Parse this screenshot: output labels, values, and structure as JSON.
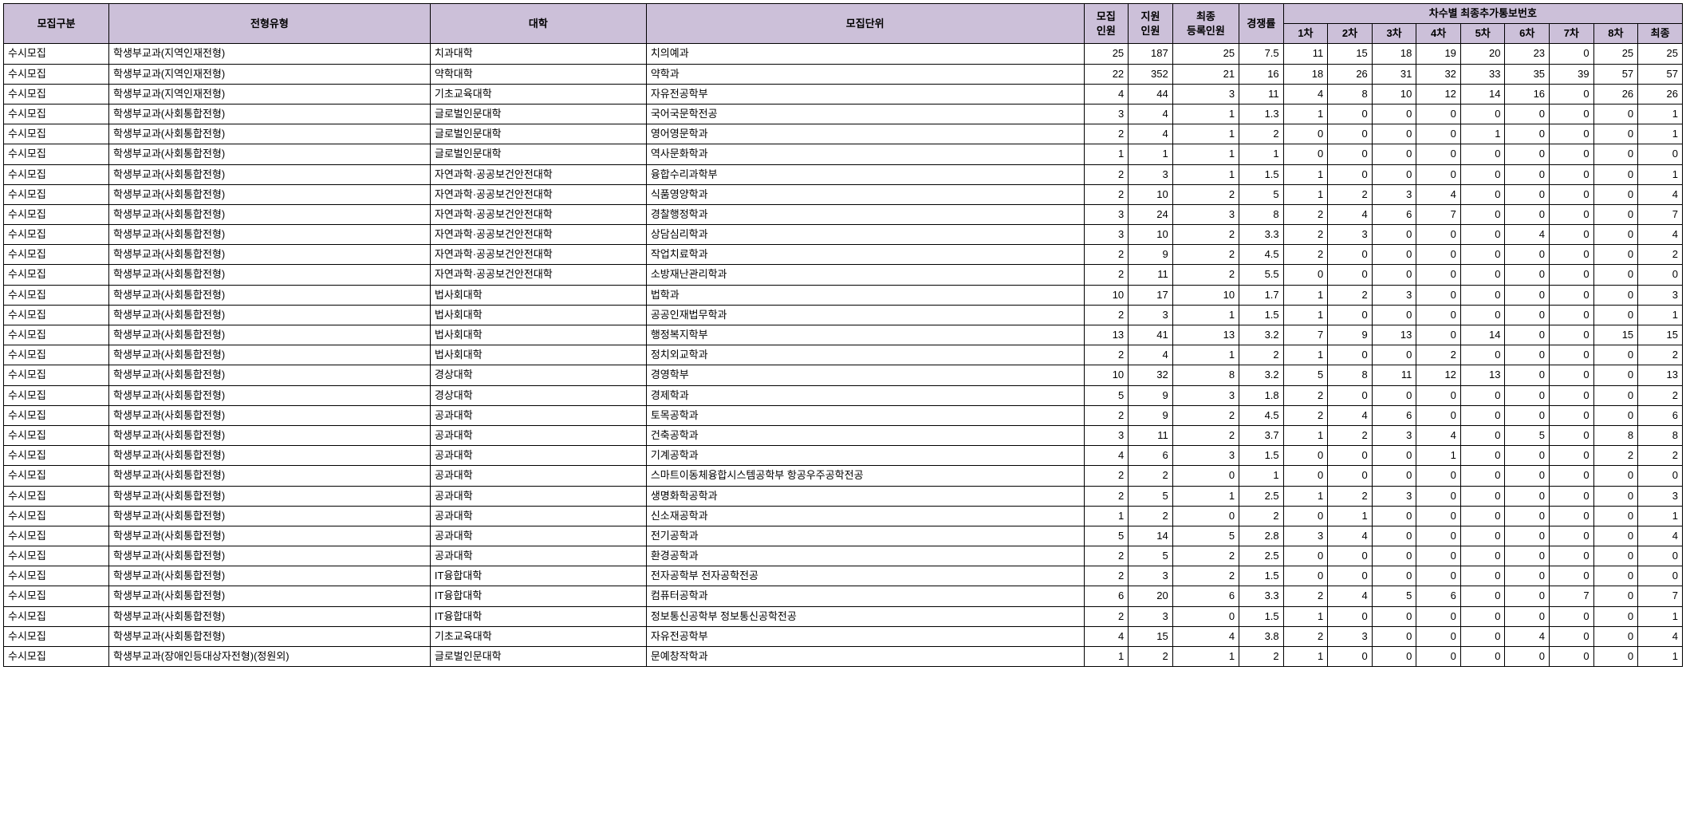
{
  "styling": {
    "header_bg": "#ccc0d9",
    "border_color": "#000000",
    "cell_bg": "#ffffff",
    "font_size": 13,
    "font_family": "Malgun Gothic"
  },
  "headers": {
    "category": "모집구분",
    "admission_type": "전형유형",
    "college": "대학",
    "department": "모집단위",
    "recruit_count": "모집\n인원",
    "apply_count": "지원\n인원",
    "final_enroll": "최종\n등록인원",
    "competition": "경쟁률",
    "round_notice_group": "차수별 최종추가통보번호",
    "r1": "1차",
    "r2": "2차",
    "r3": "3차",
    "r4": "4차",
    "r5": "5차",
    "r6": "6차",
    "r7": "7차",
    "r8": "8차",
    "final": "최종"
  },
  "rows": [
    {
      "category": "수시모집",
      "type": "학생부교과(지역인재전형)",
      "college": "치과대학",
      "dept": "치의예과",
      "recruit": 25,
      "apply": 187,
      "enroll": 25,
      "comp": "7.5",
      "r": [
        11,
        15,
        18,
        19,
        20,
        23,
        0,
        25,
        25
      ]
    },
    {
      "category": "수시모집",
      "type": "학생부교과(지역인재전형)",
      "college": "약학대학",
      "dept": "약학과",
      "recruit": 22,
      "apply": 352,
      "enroll": 21,
      "comp": "16",
      "r": [
        18,
        26,
        31,
        32,
        33,
        35,
        39,
        57,
        57
      ]
    },
    {
      "category": "수시모집",
      "type": "학생부교과(지역인재전형)",
      "college": "기초교육대학",
      "dept": "자유전공학부",
      "recruit": 4,
      "apply": 44,
      "enroll": 3,
      "comp": "11",
      "r": [
        4,
        8,
        10,
        12,
        14,
        16,
        0,
        26,
        26
      ]
    },
    {
      "category": "수시모집",
      "type": "학생부교과(사회통합전형)",
      "college": "글로벌인문대학",
      "dept": "국어국문학전공",
      "recruit": 3,
      "apply": 4,
      "enroll": 1,
      "comp": "1.3",
      "r": [
        1,
        0,
        0,
        0,
        0,
        0,
        0,
        0,
        1
      ]
    },
    {
      "category": "수시모집",
      "type": "학생부교과(사회통합전형)",
      "college": "글로벌인문대학",
      "dept": "영어영문학과",
      "recruit": 2,
      "apply": 4,
      "enroll": 1,
      "comp": "2",
      "r": [
        0,
        0,
        0,
        0,
        1,
        0,
        0,
        0,
        1
      ]
    },
    {
      "category": "수시모집",
      "type": "학생부교과(사회통합전형)",
      "college": "글로벌인문대학",
      "dept": "역사문화학과",
      "recruit": 1,
      "apply": 1,
      "enroll": 1,
      "comp": "1",
      "r": [
        0,
        0,
        0,
        0,
        0,
        0,
        0,
        0,
        0
      ]
    },
    {
      "category": "수시모집",
      "type": "학생부교과(사회통합전형)",
      "college": "자연과학·공공보건안전대학",
      "dept": "융합수리과학부",
      "recruit": 2,
      "apply": 3,
      "enroll": 1,
      "comp": "1.5",
      "r": [
        1,
        0,
        0,
        0,
        0,
        0,
        0,
        0,
        1
      ]
    },
    {
      "category": "수시모집",
      "type": "학생부교과(사회통합전형)",
      "college": "자연과학·공공보건안전대학",
      "dept": "식품영양학과",
      "recruit": 2,
      "apply": 10,
      "enroll": 2,
      "comp": "5",
      "r": [
        1,
        2,
        3,
        4,
        0,
        0,
        0,
        0,
        4
      ]
    },
    {
      "category": "수시모집",
      "type": "학생부교과(사회통합전형)",
      "college": "자연과학·공공보건안전대학",
      "dept": "경찰행정학과",
      "recruit": 3,
      "apply": 24,
      "enroll": 3,
      "comp": "8",
      "r": [
        2,
        4,
        6,
        7,
        0,
        0,
        0,
        0,
        7
      ]
    },
    {
      "category": "수시모집",
      "type": "학생부교과(사회통합전형)",
      "college": "자연과학·공공보건안전대학",
      "dept": "상담심리학과",
      "recruit": 3,
      "apply": 10,
      "enroll": 2,
      "comp": "3.3",
      "r": [
        2,
        3,
        0,
        0,
        0,
        4,
        0,
        0,
        4
      ]
    },
    {
      "category": "수시모집",
      "type": "학생부교과(사회통합전형)",
      "college": "자연과학·공공보건안전대학",
      "dept": "작업치료학과",
      "recruit": 2,
      "apply": 9,
      "enroll": 2,
      "comp": "4.5",
      "r": [
        2,
        0,
        0,
        0,
        0,
        0,
        0,
        0,
        2
      ]
    },
    {
      "category": "수시모집",
      "type": "학생부교과(사회통합전형)",
      "college": "자연과학·공공보건안전대학",
      "dept": "소방재난관리학과",
      "recruit": 2,
      "apply": 11,
      "enroll": 2,
      "comp": "5.5",
      "r": [
        0,
        0,
        0,
        0,
        0,
        0,
        0,
        0,
        0
      ]
    },
    {
      "category": "수시모집",
      "type": "학생부교과(사회통합전형)",
      "college": "법사회대학",
      "dept": "법학과",
      "recruit": 10,
      "apply": 17,
      "enroll": 10,
      "comp": "1.7",
      "r": [
        1,
        2,
        3,
        0,
        0,
        0,
        0,
        0,
        3
      ]
    },
    {
      "category": "수시모집",
      "type": "학생부교과(사회통합전형)",
      "college": "법사회대학",
      "dept": "공공인재법무학과",
      "recruit": 2,
      "apply": 3,
      "enroll": 1,
      "comp": "1.5",
      "r": [
        1,
        0,
        0,
        0,
        0,
        0,
        0,
        0,
        1
      ]
    },
    {
      "category": "수시모집",
      "type": "학생부교과(사회통합전형)",
      "college": "법사회대학",
      "dept": "행정복지학부",
      "recruit": 13,
      "apply": 41,
      "enroll": 13,
      "comp": "3.2",
      "r": [
        7,
        9,
        13,
        0,
        14,
        0,
        0,
        15,
        15
      ]
    },
    {
      "category": "수시모집",
      "type": "학생부교과(사회통합전형)",
      "college": "법사회대학",
      "dept": "정치외교학과",
      "recruit": 2,
      "apply": 4,
      "enroll": 1,
      "comp": "2",
      "r": [
        1,
        0,
        0,
        2,
        0,
        0,
        0,
        0,
        2
      ]
    },
    {
      "category": "수시모집",
      "type": "학생부교과(사회통합전형)",
      "college": "경상대학",
      "dept": "경영학부",
      "recruit": 10,
      "apply": 32,
      "enroll": 8,
      "comp": "3.2",
      "r": [
        5,
        8,
        11,
        12,
        13,
        0,
        0,
        0,
        13
      ]
    },
    {
      "category": "수시모집",
      "type": "학생부교과(사회통합전형)",
      "college": "경상대학",
      "dept": "경제학과",
      "recruit": 5,
      "apply": 9,
      "enroll": 3,
      "comp": "1.8",
      "r": [
        2,
        0,
        0,
        0,
        0,
        0,
        0,
        0,
        2
      ]
    },
    {
      "category": "수시모집",
      "type": "학생부교과(사회통합전형)",
      "college": "공과대학",
      "dept": "토목공학과",
      "recruit": 2,
      "apply": 9,
      "enroll": 2,
      "comp": "4.5",
      "r": [
        2,
        4,
        6,
        0,
        0,
        0,
        0,
        0,
        6
      ]
    },
    {
      "category": "수시모집",
      "type": "학생부교과(사회통합전형)",
      "college": "공과대학",
      "dept": "건축공학과",
      "recruit": 3,
      "apply": 11,
      "enroll": 2,
      "comp": "3.7",
      "r": [
        1,
        2,
        3,
        4,
        0,
        5,
        0,
        8,
        8
      ]
    },
    {
      "category": "수시모집",
      "type": "학생부교과(사회통합전형)",
      "college": "공과대학",
      "dept": "기계공학과",
      "recruit": 4,
      "apply": 6,
      "enroll": 3,
      "comp": "1.5",
      "r": [
        0,
        0,
        0,
        1,
        0,
        0,
        0,
        2,
        2
      ]
    },
    {
      "category": "수시모집",
      "type": "학생부교과(사회통합전형)",
      "college": "공과대학",
      "dept": "스마트이동체융합시스템공학부 항공우주공학전공",
      "recruit": 2,
      "apply": 2,
      "enroll": 0,
      "comp": "1",
      "r": [
        0,
        0,
        0,
        0,
        0,
        0,
        0,
        0,
        0
      ]
    },
    {
      "category": "수시모집",
      "type": "학생부교과(사회통합전형)",
      "college": "공과대학",
      "dept": "생명화학공학과",
      "recruit": 2,
      "apply": 5,
      "enroll": 1,
      "comp": "2.5",
      "r": [
        1,
        2,
        3,
        0,
        0,
        0,
        0,
        0,
        3
      ]
    },
    {
      "category": "수시모집",
      "type": "학생부교과(사회통합전형)",
      "college": "공과대학",
      "dept": "신소재공학과",
      "recruit": 1,
      "apply": 2,
      "enroll": 0,
      "comp": "2",
      "r": [
        0,
        1,
        0,
        0,
        0,
        0,
        0,
        0,
        1
      ]
    },
    {
      "category": "수시모집",
      "type": "학생부교과(사회통합전형)",
      "college": "공과대학",
      "dept": "전기공학과",
      "recruit": 5,
      "apply": 14,
      "enroll": 5,
      "comp": "2.8",
      "r": [
        3,
        4,
        0,
        0,
        0,
        0,
        0,
        0,
        4
      ]
    },
    {
      "category": "수시모집",
      "type": "학생부교과(사회통합전형)",
      "college": "공과대학",
      "dept": "환경공학과",
      "recruit": 2,
      "apply": 5,
      "enroll": 2,
      "comp": "2.5",
      "r": [
        0,
        0,
        0,
        0,
        0,
        0,
        0,
        0,
        0
      ]
    },
    {
      "category": "수시모집",
      "type": "학생부교과(사회통합전형)",
      "college": "IT융합대학",
      "dept": "전자공학부 전자공학전공",
      "recruit": 2,
      "apply": 3,
      "enroll": 2,
      "comp": "1.5",
      "r": [
        0,
        0,
        0,
        0,
        0,
        0,
        0,
        0,
        0
      ]
    },
    {
      "category": "수시모집",
      "type": "학생부교과(사회통합전형)",
      "college": "IT융합대학",
      "dept": "컴퓨터공학과",
      "recruit": 6,
      "apply": 20,
      "enroll": 6,
      "comp": "3.3",
      "r": [
        2,
        4,
        5,
        6,
        0,
        0,
        7,
        0,
        7
      ]
    },
    {
      "category": "수시모집",
      "type": "학생부교과(사회통합전형)",
      "college": "IT융합대학",
      "dept": "정보통신공학부 정보통신공학전공",
      "recruit": 2,
      "apply": 3,
      "enroll": 0,
      "comp": "1.5",
      "r": [
        1,
        0,
        0,
        0,
        0,
        0,
        0,
        0,
        1
      ]
    },
    {
      "category": "수시모집",
      "type": "학생부교과(사회통합전형)",
      "college": "기초교육대학",
      "dept": "자유전공학부",
      "recruit": 4,
      "apply": 15,
      "enroll": 4,
      "comp": "3.8",
      "r": [
        2,
        3,
        0,
        0,
        0,
        4,
        0,
        0,
        4
      ]
    },
    {
      "category": "수시모집",
      "type": "학생부교과(장애인등대상자전형)(정원외)",
      "college": "글로벌인문대학",
      "dept": "문예창작학과",
      "recruit": 1,
      "apply": 2,
      "enroll": 1,
      "comp": "2",
      "r": [
        1,
        0,
        0,
        0,
        0,
        0,
        0,
        0,
        1
      ]
    }
  ]
}
